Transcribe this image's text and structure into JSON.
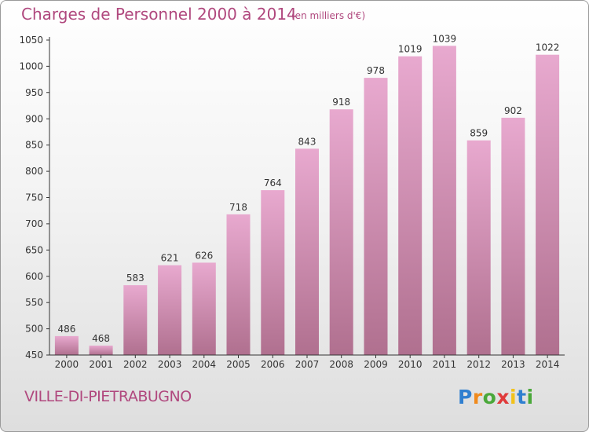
{
  "title": "Charges de Personnel 2000 à 2014",
  "subtitle": "(en milliers d'€)",
  "commune": "VILLE-DI-PIETRABUGNO",
  "logo": {
    "letters": [
      {
        "char": "P",
        "color": "#2f7fd0"
      },
      {
        "char": "r",
        "color": "#f08a1c"
      },
      {
        "char": "o",
        "color": "#4aa83a"
      },
      {
        "char": "x",
        "color": "#e03a3a"
      },
      {
        "char": "i",
        "color": "#f2c21b"
      },
      {
        "char": "t",
        "color": "#2f7fd0"
      },
      {
        "char": "i",
        "color": "#4aa83a"
      }
    ]
  },
  "colors": {
    "title": "#b0487e",
    "bar_top": "#e8a9cf",
    "bar_bottom": "#b0708f",
    "axis": "#333333"
  },
  "chart_data": {
    "type": "bar",
    "categories": [
      "2000",
      "2001",
      "2002",
      "2003",
      "2004",
      "2005",
      "2006",
      "2007",
      "2008",
      "2009",
      "2010",
      "2011",
      "2012",
      "2013",
      "2014"
    ],
    "values": [
      486,
      468,
      583,
      621,
      626,
      718,
      764,
      843,
      918,
      978,
      1019,
      1039,
      859,
      902,
      1022
    ],
    "ylim": [
      450,
      1050
    ],
    "yticks": [
      450,
      500,
      550,
      600,
      650,
      700,
      750,
      800,
      850,
      900,
      950,
      1000,
      1050
    ],
    "grid": false
  }
}
